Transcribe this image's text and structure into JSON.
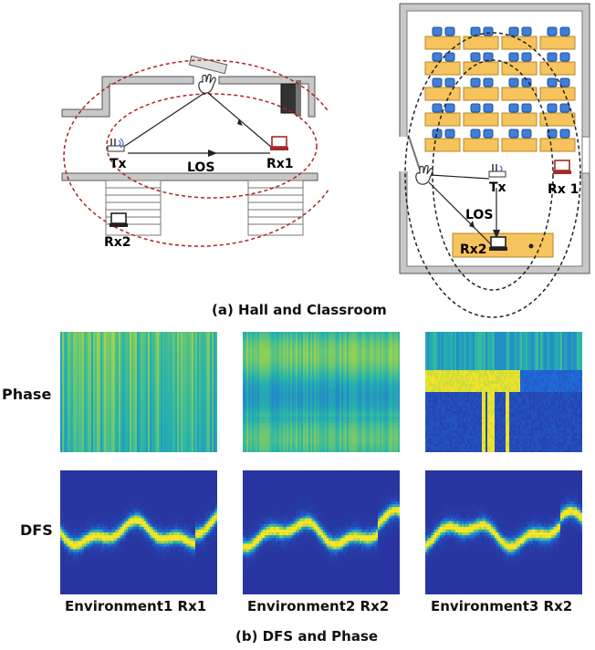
{
  "diagram_a": {
    "hall": {
      "tx": "Tx",
      "los": "LOS",
      "rx1": "Rx1",
      "rx2": "Rx2"
    },
    "classroom": {
      "tx": "Tx",
      "los": "LOS",
      "rx1": "Rx 1",
      "rx2": "Rx2"
    },
    "caption": "(a) Hall and Classroom"
  },
  "diagram_b": {
    "rows": [
      "Phase",
      "DFS"
    ],
    "columns": [
      "Environment1 Rx1",
      "Environment2 Rx2",
      "Environment3 Rx2"
    ],
    "caption": "(b) DFS and Phase"
  },
  "colors": {
    "ellipse_red": "#b22222",
    "ellipse_black": "#222222",
    "table": "#f7c35c",
    "chair": "#3f7fd8",
    "panel_low": "#2b2f9e",
    "panel_mid": "#27a8a0",
    "panel_high": "#f5e12a"
  }
}
